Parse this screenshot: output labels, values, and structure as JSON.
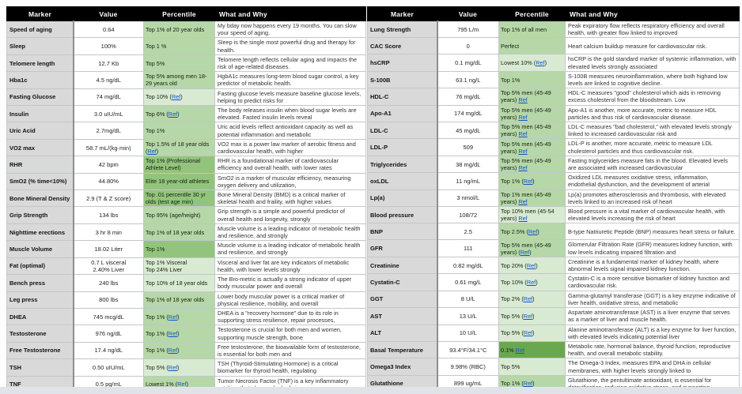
{
  "colors": {
    "shade_light": "#d9ead3",
    "shade_medium": "#b6d7a8",
    "shade_dark": "#93c47d",
    "shade_darkest": "#6aa84f",
    "ref_link": "#1155cc",
    "header_bg": "#000000",
    "header_text": "#ffffff",
    "marker_col_bg": "#d9d9d9"
  },
  "tables": [
    {
      "name": "left",
      "headers": [
        "Marker",
        "Value",
        "Percentile",
        "What and Why"
      ],
      "rows": [
        {
          "marker": "Speed of aging",
          "value": "0.64",
          "shade": "medium",
          "p1": "Top 1% of 20 year olds",
          "ref": null,
          "p2": "",
          "why": "My bday now happens every 19 months. You can slow your speed of aging."
        },
        {
          "marker": "Sleep",
          "value": "100%",
          "shade": "medium",
          "p1": "Top 1 %",
          "ref": null,
          "p2": "",
          "why": "Sleep is the single most powerful drug and therapy for health."
        },
        {
          "marker": "Telomere length",
          "value": "12.7 Kb",
          "shade": "medium",
          "p1": "Top 5%",
          "ref": null,
          "p2": "",
          "why": "Telomere length reflects cellular aging and impacts the risk of age-related diseases."
        },
        {
          "marker": "Hba1c",
          "value": "4.5 ng/dL",
          "shade": "medium",
          "p1": "Top 5% among men 18-29 years old",
          "ref": null,
          "p2": "",
          "why": "HgbA1c measures long-term blood sugar control, a key predictor of metabolic health."
        },
        {
          "marker": "Fasting Glucose",
          "value": "74 mg/dL",
          "shade": "light",
          "p1": "Top 10% (",
          "ref": "Ref",
          "p2": ")",
          "why": "Fasting glucose levels measure baseline glucose levels, helping to predict risks for"
        },
        {
          "marker": "Insulin",
          "value": "3.0 uIU/mL",
          "shade": "medium",
          "p1": "Top 6% (",
          "ref": "Ref",
          "p2": ")",
          "why": "The body releases insulin when blood sugar levels are elevated. Fasted insulin levels reveal"
        },
        {
          "marker": "Uric Acid",
          "value": "2.7mg/dL",
          "shade": "medium",
          "p1": "Top 1%",
          "ref": null,
          "p2": "",
          "why": "Uric acid levels reflect antioxidant capacity as well as potential inflammation and metabolic"
        },
        {
          "marker": "VO2 max",
          "value": "58.7 mL/(kg·min)",
          "shade": "medium",
          "p1": "Top 1.5% of 18 year olds (",
          "ref": "Ref",
          "p2": ")",
          "why": "VO2 max is a power law marker of aerobic fitness and cardiovascular health, with higher"
        },
        {
          "marker": "RHR",
          "value": "42 bpm",
          "shade": "dark",
          "p1": "Top 1% (Professional Athlete Level)",
          "ref": null,
          "p2": "",
          "why": "RHR is a foundational marker of cardiovascular efficiency and overall health, with lower rates"
        },
        {
          "marker": "SmO2 (% time<10%)",
          "value": "44.80%",
          "shade": "dark",
          "p1": "Elite 18 year-old athletes",
          "ref": null,
          "p2": "",
          "why": "SmO2 is a marker of muscular efficiency, measuring oxygen delivery and utilization,"
        },
        {
          "marker": "Bone Mineral Density",
          "value": "2.9 (T & Z score)",
          "shade": "dark",
          "p1": "Top .01 percentile 30 yr olds (test age min)",
          "ref": null,
          "p2": "",
          "why": "Bone Mineral Density (BMD) is a critical marker of skeletal health and fraility, with higher values"
        },
        {
          "marker": "Grip Strength",
          "value": "134 lbs",
          "shade": "medium",
          "p1": "Top 95% (age/height)",
          "ref": null,
          "p2": "",
          "why": "Grip strength is a simple and powerful predictor of overall health and longevity, strongly"
        },
        {
          "marker": "Nighttime erections",
          "value": "3 hr 8 min",
          "shade": "medium",
          "p1": "Top 1% of 18 year olds",
          "ref": null,
          "p2": "",
          "why": "Muscle volume is a leading indicator of metabolic health and resilience, and strongly"
        },
        {
          "marker": "Muscle Volume",
          "value": "18.02 Liter",
          "shade": "dark",
          "p1": "Top 1%",
          "ref": null,
          "p2": "",
          "why": "Muscle volume is a leading indicator of metabolic health and resilience, and strongly"
        },
        {
          "marker": "Fat (optimal)",
          "value": "0.7 L visceral\n2.40% Liver",
          "shade": "light",
          "p1": "Top 1% Visceral\nTop 24% Liver",
          "ref": null,
          "p2": "",
          "why": "Visceral and liver fat are key indicators of metabolic health, with lower levels strongly"
        },
        {
          "marker": "Bench press",
          "value": "240 lbs",
          "shade": "light",
          "p1": "Top 10% of 18 year olds",
          "ref": null,
          "p2": "",
          "why": "The Bro-metric is actually a strong indicator of upper body muscular power and overall"
        },
        {
          "marker": "Leg press",
          "value": "800 lbs",
          "shade": "medium",
          "p1": "Top 1% of 18 year olds",
          "ref": null,
          "p2": "",
          "why": "Lower body muscular power is a critical marker of physical resilience, mobility, and overall"
        },
        {
          "marker": "DHEA",
          "value": "745 mcg/dL",
          "shade": "medium",
          "p1": "Top 1% (",
          "ref": "Ref",
          "p2": ")",
          "why": "DHEA is a \"recovery hormone\" due to its role in supporting stress resilience, repair processes,"
        },
        {
          "marker": "Testosterone",
          "value": "976 ng/dL",
          "shade": "medium",
          "p1": "Top 1% (",
          "ref": "Ref",
          "p2": ")",
          "why": "Testosterone is crucial for both men and women, supporting muscle strength, bone"
        },
        {
          "marker": "Free Testosterone",
          "value": "17.4 ng/dL",
          "shade": "medium",
          "p1": "Top 1% (",
          "ref": "Ref",
          "p2": ")",
          "why": "Free testosterone, the bioavailable form of testosterone, is essential for both men and"
        },
        {
          "marker": "TSH",
          "value": "0.50 uIU/mL",
          "shade": "light",
          "p1": "Top 5% (",
          "ref": "Ref",
          "p2": ")",
          "why": "TSH (Thyroid-Stimulating Hormone) is a critical biomarker for thyroid health, regulating"
        },
        {
          "marker": "TNF",
          "value": "0.5 pg/mL",
          "shade": "medium",
          "p1": "Lowest 1% (",
          "ref": "Ref",
          "p2": ")",
          "why": "Tumor Necrosis Factor (TNF) is a key inflammatory cytokine that plays a dual role in"
        }
      ]
    },
    {
      "name": "right",
      "headers": [
        "Marker",
        "Value",
        "Percentile",
        "What and Why"
      ],
      "rows": [
        {
          "marker": "Lung Strength",
          "value": "795 L/m",
          "shade": "medium",
          "p1": "Top 1% of all men",
          "ref": null,
          "p2": "",
          "why": "Peak expiratory flow reflects respiratory efficiency and overall health, with greater flow linked to improved"
        },
        {
          "marker": "CAC Score",
          "value": "0",
          "shade": "medium",
          "p1": "Perfect",
          "ref": null,
          "p2": "",
          "why": "Heart calcium buildup measure for cardiovascular risk."
        },
        {
          "marker": "hsCRP",
          "value": "0.1 mg/dL",
          "shade": "light",
          "p1": "Lowest 10% (",
          "ref": "Ref",
          "p2": ")",
          "why": "hsCRP is the gold standard marker of systemic inflammation, with elevated levels strongly associated"
        },
        {
          "marker": "S-100B",
          "value": "63.1 ng/L",
          "shade": "medium",
          "p1": "Top 1%",
          "ref": null,
          "p2": "",
          "why": "S-100B measures neuroinflammation, where both highand low levels are linked to cognitive decline."
        },
        {
          "marker": "HDL-C",
          "value": "76 mg/dL",
          "shade": "medium",
          "p1": "Top 5% men (45-49 years) ",
          "ref": "Ref",
          "p2": "",
          "why": "HDL-C measures \"good\" cholesterol which aids in removing excess cholesterol from the bloodstream. Low"
        },
        {
          "marker": "Apo-A1",
          "value": "174 mg/dL",
          "shade": "medium",
          "p1": "Top 5% men (45-49 years) ",
          "ref": "Ref",
          "p2": "",
          "why": "Apo-A1 is another, more accurate, metric to measure HDL particles and thus risk of cardiovascular disease."
        },
        {
          "marker": "LDL-C",
          "value": "45 mg/dL",
          "shade": "medium",
          "p1": "Top 5% men (45-49 years) ",
          "ref": "Ref",
          "p2": "",
          "why": "LDL-C measures \"bad cholesterol,\" with elevated levels strongly linked to increased cardiovascular risk and"
        },
        {
          "marker": "LDL-P",
          "value": "509",
          "shade": "medium",
          "p1": "Top 5% men (45-49 years) ",
          "ref": "Ref",
          "p2": "",
          "why": "LDL-P is another, more accurate, metric to measure LDL cholesterol particles and thus cardiovascular risk."
        },
        {
          "marker": "Triglycerides",
          "value": "38 mg/dL",
          "shade": "medium",
          "p1": "Top 5% men (45-49 years) ",
          "ref": "Ref",
          "p2": "",
          "why": "Fasting triglycerides measure fats in the blood. Elevated levels are associated with increased cardiovascular"
        },
        {
          "marker": "oxLDL",
          "value": "11 ng/mL",
          "shade": "medium",
          "p1": "Top 1% (",
          "ref": "Ref",
          "p2": ")",
          "why": "Oxidized LDL measures oxidative stress, inflammation, endothelial dysfunction, and the development of arterial"
        },
        {
          "marker": "Lp(a)",
          "value": "3 nmol/L",
          "shade": "medium",
          "p1": "Top 1% men (45-49 years) ",
          "ref": "Ref",
          "p2": "",
          "why": "Lp(a) promotes atherosclerosis and thrombosis, with elevated levels linked to an increased risk of heart"
        },
        {
          "marker": "Blood pressure",
          "value": "108/72",
          "shade": "light",
          "p1": "Top 10% men (45-54 years) ",
          "ref": "Ref",
          "p2": "",
          "why": "Blood pressure is a vital marker of cardiovascular health, with elevated levels increasing the risk of heart"
        },
        {
          "marker": "BNP",
          "value": "2.5",
          "shade": "medium",
          "p1": "Top 2.5% (",
          "ref": "Ref",
          "p2": ")",
          "why": "B-type Natriuretic Peptide (BNP) measures heart stress or failure."
        },
        {
          "marker": "GFR",
          "value": "111",
          "shade": "medium",
          "p1": "Top 5% men (45-49 years) (",
          "ref": "Ref",
          "p2": ")",
          "why": "Glomerular Filtration Rate (GFR) measures kidney function, with low levels indicating impaired filtration and"
        },
        {
          "marker": "Creatinine",
          "value": "0.82 mg/dL",
          "shade": "light",
          "p1": "Top 20% (",
          "ref": "Ref",
          "p2": ")",
          "why": "Creatinine is a fundamental marker of kidney health, where abnormal levels signal impaired kidney function."
        },
        {
          "marker": "Cystatin-C",
          "value": "0.61 mg/L",
          "shade": "light",
          "p1": "Top 10% (",
          "ref": "Ref",
          "p2": ")",
          "why": "Cystatin-C is a more sensitive biomarker of kidney function and cardiovascular risk."
        },
        {
          "marker": "GGT",
          "value": "8 U/L",
          "shade": "light",
          "p1": "Top 2% (",
          "ref": "Ref",
          "p2": ")",
          "why": "Gamma-glutamyl transferase (GGT) is a key enzyme indicative of liver health, oxidative stress, and metabolic"
        },
        {
          "marker": "AST",
          "value": "13 U/L",
          "shade": "light",
          "p1": "Top 5% (",
          "ref": "Ref",
          "p2": ")",
          "why": "Aspartate aminotransferase (AST) is a liver enzyme that serves as a marker of liver and muscle health."
        },
        {
          "marker": "ALT",
          "value": "10 U/L",
          "shade": "light",
          "p1": "Top 5% (",
          "ref": "Ref",
          "p2": ")",
          "why": "Alanine aminotransferase (ALT) is a key enzyme for liver function, with elevated levels indicating potential liver"
        },
        {
          "marker": "Basal Temperature",
          "value": "93.4°F/34.1°C",
          "shade": "darkest",
          "p1": "0.1% ",
          "ref": "Ref",
          "p2": "",
          "why": "Metabolic rate, hormonal balance, thyroid function, reproductive health, and overall metabolic stability."
        },
        {
          "marker": "Omega3 Index",
          "value": "9.98% (RBC)",
          "shade": "light",
          "p1": "Top 5%",
          "ref": null,
          "p2": "",
          "why": "The Omega-3 Index, measures EPA and DHA in cellular membranes, with higher levels strongly linked to"
        },
        {
          "marker": "Glutathione",
          "value": "899 ug/mL",
          "shade": "medium",
          "p1": "Top 1% (",
          "ref": "Ref",
          "p2": ")",
          "why": "Glutathione, the pentultimate antioxidant, is essential for detoxification, reducing oxidative stress, and supporting"
        }
      ]
    }
  ]
}
